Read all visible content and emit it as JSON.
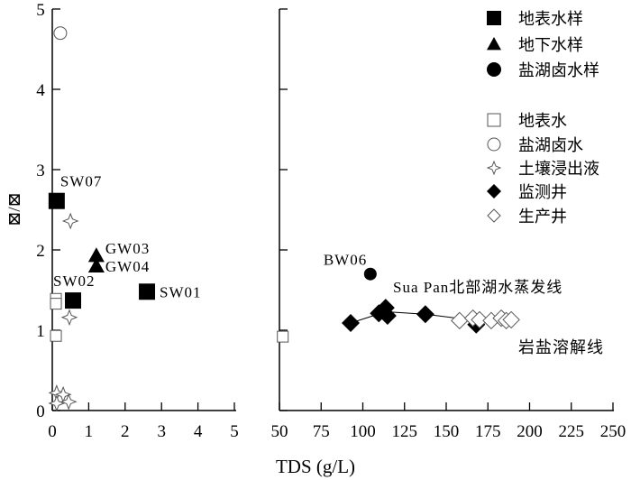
{
  "chart_data": [
    {
      "type": "scatter",
      "panel": "left",
      "xlim": [
        0,
        5
      ],
      "ylim": [
        0,
        5
      ],
      "xticks": [
        "0",
        "1",
        "2",
        "3",
        "4",
        "5"
      ],
      "yticks": [
        "0",
        "1",
        "2",
        "3",
        "4",
        "5"
      ],
      "ylabel": "⊠/⊠",
      "series": [
        {
          "name": "地表水样",
          "marker": "square-filled",
          "points": [
            {
              "x": 0.12,
              "y": 2.61,
              "label": "SW07"
            },
            {
              "x": 0.57,
              "y": 1.37,
              "label": "SW02"
            },
            {
              "x": 2.6,
              "y": 1.48,
              "label": "SW01"
            }
          ]
        },
        {
          "name": "地下水样",
          "marker": "triangle-filled",
          "points": [
            {
              "x": 1.21,
              "y": 1.93,
              "label": "GW03"
            },
            {
              "x": 1.21,
              "y": 1.8,
              "label": "GW04"
            }
          ]
        },
        {
          "name": "地表水",
          "marker": "square-open",
          "points": [
            {
              "x": 0.1,
              "y": 1.39
            },
            {
              "x": 0.1,
              "y": 1.33
            },
            {
              "x": 0.1,
              "y": 0.93
            }
          ]
        },
        {
          "name": "盐湖卤水",
          "marker": "circle-open",
          "points": [
            {
              "x": 0.22,
              "y": 4.7
            }
          ]
        },
        {
          "name": "土壤浸出液",
          "marker": "star-open",
          "points": [
            {
              "x": 0.5,
              "y": 2.36
            },
            {
              "x": 0.47,
              "y": 1.16
            },
            {
              "x": 0.12,
              "y": 0.22
            },
            {
              "x": 0.3,
              "y": 0.2
            },
            {
              "x": 0.12,
              "y": 0.09
            },
            {
              "x": 0.45,
              "y": 0.11
            }
          ]
        }
      ]
    },
    {
      "type": "scatter",
      "panel": "right",
      "xlim": [
        50,
        250
      ],
      "ylim": [
        0,
        5
      ],
      "xticks": [
        "50",
        "75",
        "100",
        "125",
        "150",
        "175",
        "200",
        "225",
        "250"
      ],
      "xlabel": "TDS (g/L)",
      "series": [
        {
          "name": "盐湖卤水样",
          "marker": "circle-filled",
          "points": [
            {
              "x": 104.5,
              "y": 1.7,
              "label": "BW06"
            }
          ]
        },
        {
          "name": "地表水",
          "marker": "square-open",
          "points": [
            {
              "x": 52,
              "y": 0.92
            }
          ]
        },
        {
          "name": "监测井",
          "marker": "diamond-filled",
          "points": [
            {
              "x": 92.7,
              "y": 1.09
            },
            {
              "x": 109.6,
              "y": 1.21
            },
            {
              "x": 113.7,
              "y": 1.28
            },
            {
              "x": 114.8,
              "y": 1.18
            },
            {
              "x": 137.5,
              "y": 1.2
            },
            {
              "x": 168,
              "y": 1.07
            }
          ]
        },
        {
          "name": "生产井",
          "marker": "diamond-open",
          "points": [
            {
              "x": 158,
              "y": 1.12
            },
            {
              "x": 166,
              "y": 1.15
            },
            {
              "x": 170,
              "y": 1.13
            },
            {
              "x": 177,
              "y": 1.12
            },
            {
              "x": 183,
              "y": 1.15
            },
            {
              "x": 186,
              "y": 1.12
            },
            {
              "x": 189,
              "y": 1.13
            }
          ]
        }
      ],
      "lines": [
        {
          "name": "Sua Pan北部湖水蒸发线",
          "points": [
            {
              "x": 92.7,
              "y": 1.09
            },
            {
              "x": 113.7,
              "y": 1.23
            },
            {
              "x": 137.5,
              "y": 1.2
            },
            {
              "x": 168,
              "y": 1.12
            },
            {
              "x": 190,
              "y": 1.13
            }
          ]
        }
      ],
      "annotations": [
        "Sua Pan北部湖水蒸发线",
        "岩盐溶解线"
      ]
    }
  ],
  "legend": {
    "placement": "top-right",
    "entries": [
      {
        "label": "地表水样",
        "marker": "square-filled"
      },
      {
        "label": "地下水样",
        "marker": "triangle-filled"
      },
      {
        "label": "盐湖卤水样",
        "marker": "circle-filled"
      },
      {
        "label": "地表水",
        "marker": "square-open"
      },
      {
        "label": "盐湖卤水",
        "marker": "circle-open"
      },
      {
        "label": "土壤浸出液",
        "marker": "star-open"
      },
      {
        "label": "监测井",
        "marker": "diamond-filled"
      },
      {
        "label": "生产井",
        "marker": "diamond-open"
      }
    ]
  }
}
